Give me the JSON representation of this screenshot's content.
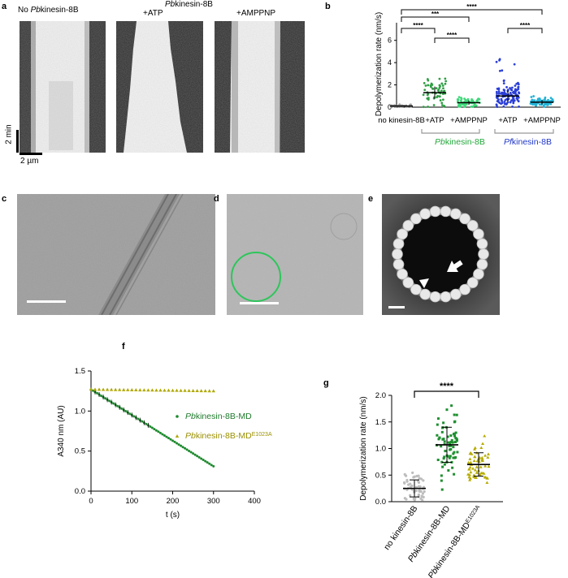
{
  "panel_labels": {
    "a": "a",
    "b": "b",
    "c": "c",
    "d": "d",
    "e": "e",
    "f": "f",
    "g": "g"
  },
  "panel_a": {
    "kymo1_label_prefix": "No ",
    "kymo1_label_italic": "Pb",
    "kymo1_label_suffix": "kinesin-8B",
    "group_label_italic": "Pb",
    "group_label_suffix": "kinesin-8B",
    "kymo2_label": "+ATP",
    "kymo3_label": "+AMPPNP",
    "time_scale": "2 min",
    "length_scale": "2 µm"
  },
  "panel_b": {
    "ylabel": "Depolymerization rate (nm/s)",
    "yticks": [
      "0",
      "2",
      "4",
      "6"
    ],
    "categories": [
      "no kinesin-8B",
      "+ATP",
      "+AMPPNP",
      "+ATP",
      "+AMPPNP"
    ],
    "group1_italic": "Pb",
    "group1_suffix": "kinesin-8B",
    "group2_italic": "Pf",
    "group2_suffix": "kinesin-8B",
    "sig": [
      "****",
      "***",
      "****",
      "****",
      "****"
    ],
    "colors": {
      "none": "#9a9a9a",
      "pb_atp": "#2f9e44",
      "pb_amppnp": "#3fd97a",
      "pf_atp": "#2b3fd6",
      "pf_amppnp": "#22b2d6"
    }
  },
  "panel_f": {
    "ylabel": "A340 nm (AU)",
    "xlabel": "t (s)",
    "xticks": [
      "0",
      "100",
      "200",
      "300",
      "400"
    ],
    "yticks": [
      "0.0",
      "0.5",
      "1.0",
      "1.5"
    ],
    "legend1_italic": "Pb",
    "legend1_suffix": "kinesin-8B-MD",
    "legend2_italic": "Pb",
    "legend2_suffix": "kinesin-8B-MD",
    "legend2_sup": "E1023A"
  },
  "panel_g": {
    "ylabel": "Depolymerization rate (nm/s)",
    "yticks": [
      "0.0",
      "0.5",
      "1.0",
      "1.5",
      "2.0"
    ],
    "cat1": "no kinesin-8B",
    "cat2_italic": "Pb",
    "cat2_suffix": "kinesin-8B-MD",
    "cat3_italic": "Pb",
    "cat3_suffix": "kinesin-8B-MD",
    "cat3_sup": "E1023A",
    "sig": "****"
  },
  "chart_data": [
    {
      "type": "scatter",
      "panel": "b",
      "ylabel": "Depolymerization rate (nm/s)",
      "ylim": [
        0,
        7
      ],
      "categories": [
        "no kinesin-8B",
        "+ATP",
        "+AMPPNP",
        "+ATP",
        "+AMPPNP"
      ],
      "groups": [
        "",
        "Pbkinesin-8B",
        "Pbkinesin-8B",
        "Pfkinesin-8B",
        "Pfkinesin-8B"
      ],
      "means": [
        0.1,
        1.3,
        0.4,
        1.0,
        0.45
      ],
      "sd": [
        0.05,
        0.55,
        0.2,
        0.5,
        0.2
      ],
      "significance": [
        {
          "from": 0,
          "to": 4,
          "label": "****"
        },
        {
          "from": 0,
          "to": 2,
          "label": "***"
        },
        {
          "from": 0,
          "to": 1,
          "label": "****"
        },
        {
          "from": 1,
          "to": 2,
          "label": "****"
        },
        {
          "from": 3,
          "to": 4,
          "label": "****"
        }
      ]
    },
    {
      "type": "scatter",
      "panel": "f",
      "xlabel": "t (s)",
      "ylabel": "A340 nm (AU)",
      "xlim": [
        0,
        400
      ],
      "ylim": [
        0,
        1.5
      ],
      "series": [
        {
          "name": "Pbkinesin-8B-MD",
          "color": "#1e8a2e",
          "x_start": 0,
          "x_end": 300,
          "y_start": 1.27,
          "y_end": 0.31
        },
        {
          "name": "Pbkinesin-8B-MDE1023A",
          "color": "#b0a800",
          "x_start": 0,
          "x_end": 300,
          "y_start": 1.27,
          "y_end": 1.25
        }
      ]
    },
    {
      "type": "scatter",
      "panel": "g",
      "ylabel": "Depolymerization rate (nm/s)",
      "ylim": [
        0,
        2.0
      ],
      "categories": [
        "no kinesin-8B",
        "Pbkinesin-8B-MD",
        "Pbkinesin-8B-MDE1023A"
      ],
      "means": [
        0.25,
        1.07,
        0.7
      ],
      "sd": [
        0.16,
        0.33,
        0.22
      ],
      "significance": [
        {
          "from": 0,
          "to": 2,
          "label": "****"
        }
      ]
    }
  ]
}
